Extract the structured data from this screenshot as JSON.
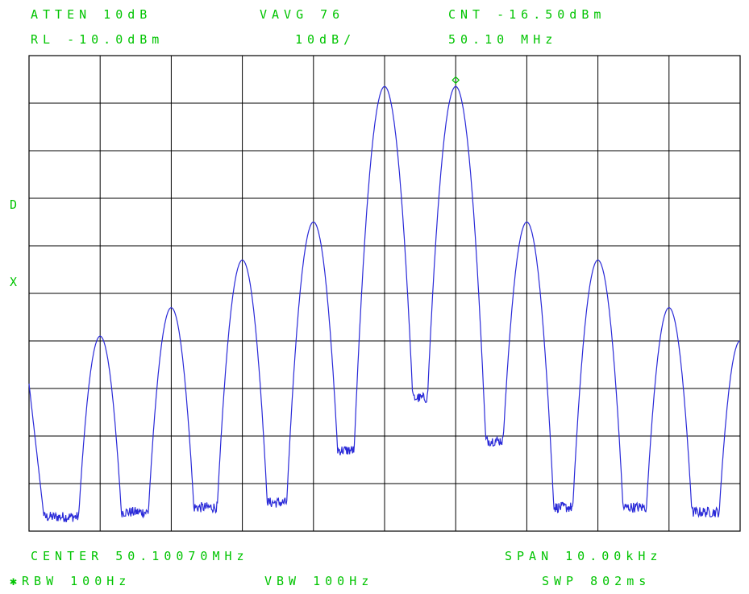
{
  "header": {
    "line1_left": "ATTEN 10dB",
    "line1_mid": "VAVG 76",
    "line1_right": "CNT -16.50dBm",
    "line2_left": "RL -10.0dBm",
    "line2_mid": "10dB/",
    "line2_right": "50.10 MHz"
  },
  "side": {
    "d_label": "D",
    "x_label": "X"
  },
  "footer": {
    "center": "CENTER 50.10070MHz",
    "span": "SPAN 10.00kHz",
    "rbw": "✱RBW 100Hz",
    "vbw": "VBW 100Hz",
    "sweep": "SWP 802ms"
  },
  "colors": {
    "text": "#00c400",
    "grid": "#000000",
    "trace": "#2a2ad8",
    "marker": "#00c400"
  },
  "chart_data": {
    "type": "line",
    "title": "",
    "xlabel": "",
    "ylabel": "",
    "x_unit": "Hz offset from center",
    "y_unit": "dBm",
    "xlim": [
      -5000,
      5000
    ],
    "ylim": [
      -110,
      -10
    ],
    "grid": true,
    "grid_divisions": {
      "x": 10,
      "y": 10
    },
    "reference_level_dbm": -10.0,
    "marker": {
      "x": 1000,
      "y": -16.5
    },
    "peaks": [
      {
        "x": -4000,
        "y": -69
      },
      {
        "x": -3000,
        "y": -63
      },
      {
        "x": -2000,
        "y": -53
      },
      {
        "x": -1000,
        "y": -45
      },
      {
        "x": 0,
        "y": -16.5
      },
      {
        "x": 1000,
        "y": -16.5
      },
      {
        "x": 2000,
        "y": -45
      },
      {
        "x": 3000,
        "y": -53
      },
      {
        "x": 4000,
        "y": -63
      },
      {
        "x": 5000,
        "y": -70
      }
    ],
    "left_edge_y": -79,
    "noise_floor": [
      {
        "from": -5000,
        "to": -4000,
        "y": -107
      },
      {
        "from": -4000,
        "to": -3000,
        "y": -106
      },
      {
        "from": -3000,
        "to": -2000,
        "y": -105
      },
      {
        "from": -2000,
        "to": -1000,
        "y": -104
      },
      {
        "from": -1000,
        "to": 0,
        "y": -93
      },
      {
        "from": 0,
        "to": 1000,
        "y": -82
      },
      {
        "from": 1000,
        "to": 2000,
        "y": -91
      },
      {
        "from": 2000,
        "to": 3000,
        "y": -105
      },
      {
        "from": 3000,
        "to": 4000,
        "y": -105
      },
      {
        "from": 4000,
        "to": 5000,
        "y": -106
      }
    ]
  }
}
